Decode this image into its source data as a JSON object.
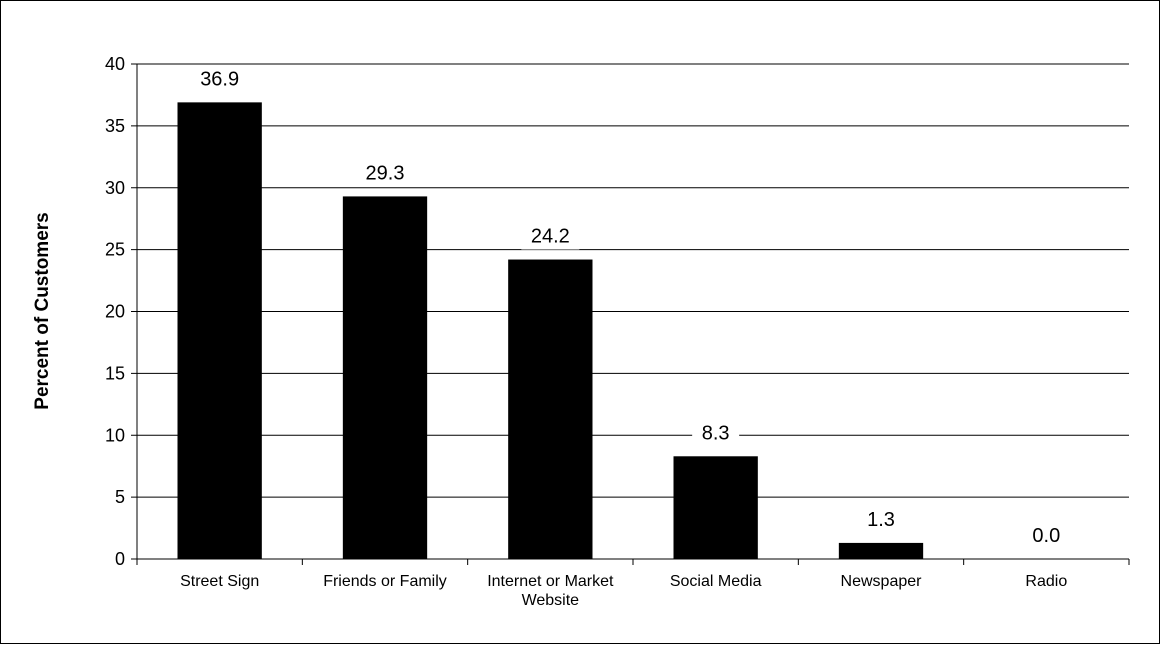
{
  "chart_data": {
    "type": "bar",
    "categories": [
      [
        "Street Sign"
      ],
      [
        "Friends or Family"
      ],
      [
        "Internet or Market",
        "Website"
      ],
      [
        "Social Media"
      ],
      [
        "Newspaper"
      ],
      [
        "Radio"
      ]
    ],
    "values": [
      36.9,
      29.3,
      24.2,
      8.3,
      1.3,
      0.0
    ],
    "data_labels": [
      "36.9",
      "29.3",
      "24.2",
      "8.3",
      "1.3",
      "0.0"
    ],
    "title": "",
    "xlabel": "",
    "ylabel": "Percent of Customers",
    "ylim": [
      0,
      40
    ],
    "yticks": [
      0,
      5,
      10,
      15,
      20,
      25,
      30,
      35,
      40
    ],
    "grid": true,
    "legend": "none",
    "bar_color": "#000000",
    "grid_color": "#000000"
  }
}
